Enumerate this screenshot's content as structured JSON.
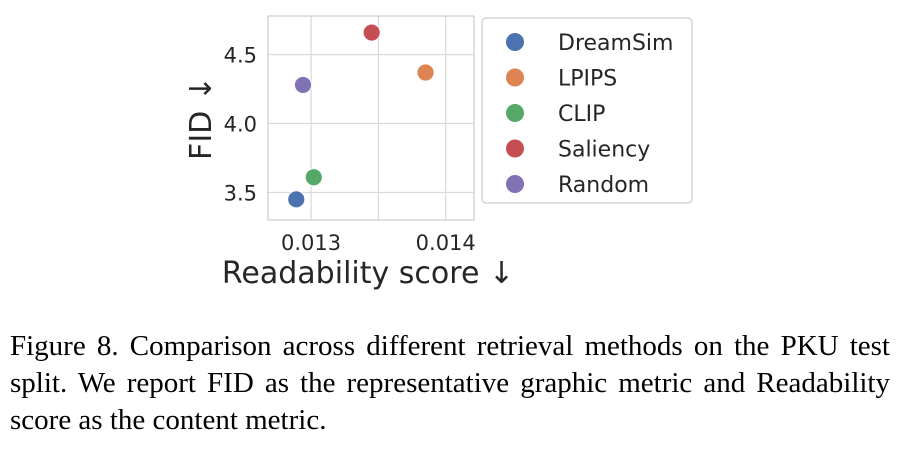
{
  "chart_data": {
    "type": "scatter",
    "xlabel": "Readability score ↓",
    "ylabel": "FID ↓",
    "xlim": [
      0.01268,
      0.01421
    ],
    "ylim": [
      3.3,
      4.78
    ],
    "x_ticks": [
      {
        "value": 0.013,
        "label": "0.013"
      },
      {
        "value": 0.014,
        "label": "0.014"
      }
    ],
    "x_grid": [
      0.013,
      0.0135,
      0.014
    ],
    "y_ticks": [
      {
        "value": 3.5,
        "label": "3.5"
      },
      {
        "value": 4.0,
        "label": "4.0"
      },
      {
        "value": 4.5,
        "label": "4.5"
      }
    ],
    "grid": true,
    "legend_position": "right",
    "series": [
      {
        "name": "DreamSim",
        "x": 0.01289,
        "y": 3.45,
        "color": "#4c72b0"
      },
      {
        "name": "LPIPS",
        "x": 0.01385,
        "y": 4.37,
        "color": "#dd8452"
      },
      {
        "name": "CLIP",
        "x": 0.01302,
        "y": 3.61,
        "color": "#55a868"
      },
      {
        "name": "Saliency",
        "x": 0.01345,
        "y": 4.66,
        "color": "#c44e52"
      },
      {
        "name": "Random",
        "x": 0.01294,
        "y": 4.28,
        "color": "#8172b3"
      }
    ]
  },
  "caption": "Figure 8.  Comparison across different retrieval methods on the PKU test split. We report FID as the representative graphic metric and Readability score as the content metric."
}
